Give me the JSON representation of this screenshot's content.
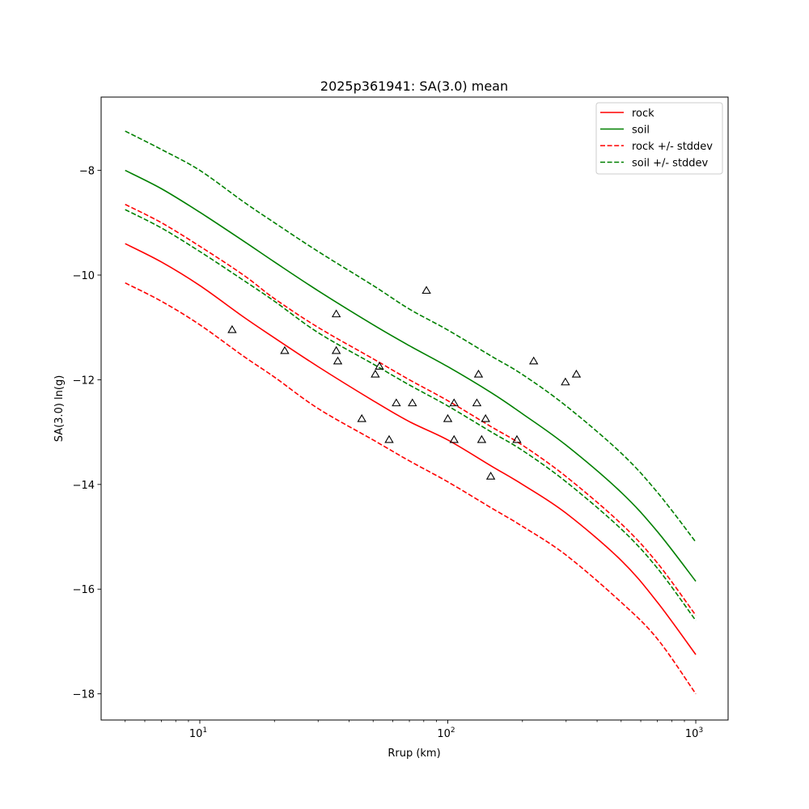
{
  "chart_data": {
    "type": "line",
    "title": "2025p361941: SA(3.0) mean",
    "xlabel": "Rrup (km)",
    "ylabel": "SA(3.0) ln(g)",
    "xscale": "log",
    "xlim": [
      4,
      1350
    ],
    "ylim": [
      -18.5,
      -6.6
    ],
    "xticks": [
      {
        "value": 10,
        "base": "10",
        "exp": "1"
      },
      {
        "value": 100,
        "base": "10",
        "exp": "2"
      },
      {
        "value": 1000,
        "base": "10",
        "exp": "3"
      }
    ],
    "yticks": [
      -8,
      -10,
      -12,
      -14,
      -16,
      -18
    ],
    "ytick_labels": [
      "−8",
      "−10",
      "−12",
      "−14",
      "−16",
      "−18"
    ],
    "legend_position": "top-right",
    "series": [
      {
        "name": "rock",
        "color": "#ff0000",
        "dash": "solid",
        "x": [
          5,
          7,
          10,
          15,
          20,
          30,
          50,
          70,
          100,
          150,
          200,
          300,
          500,
          700,
          1000
        ],
        "y": [
          -9.4,
          -9.75,
          -10.2,
          -10.8,
          -11.2,
          -11.75,
          -12.4,
          -12.8,
          -13.15,
          -13.65,
          -14.0,
          -14.55,
          -15.45,
          -16.25,
          -17.25
        ]
      },
      {
        "name": "soil",
        "color": "#008000",
        "dash": "solid",
        "x": [
          5,
          7,
          10,
          15,
          20,
          30,
          50,
          70,
          100,
          150,
          200,
          300,
          500,
          700,
          1000
        ],
        "y": [
          -8.0,
          -8.35,
          -8.8,
          -9.35,
          -9.75,
          -10.3,
          -10.95,
          -11.35,
          -11.75,
          -12.25,
          -12.65,
          -13.25,
          -14.15,
          -14.9,
          -15.85
        ]
      },
      {
        "name": "rock +/- stddev",
        "color": "#ff0000",
        "dash": "dashed",
        "x": [
          5,
          7,
          10,
          15,
          20,
          30,
          50,
          70,
          100,
          150,
          200,
          300,
          500,
          700,
          1000
        ],
        "y": [
          -8.65,
          -9.0,
          -9.45,
          -10.0,
          -10.45,
          -11.0,
          -11.6,
          -12.0,
          -12.4,
          -12.9,
          -13.25,
          -13.85,
          -14.75,
          -15.5,
          -16.5
        ]
      },
      {
        "name": "",
        "color": "#ff0000",
        "dash": "dashed",
        "x": [
          5,
          7,
          10,
          15,
          20,
          30,
          50,
          70,
          100,
          150,
          200,
          300,
          500,
          700,
          1000
        ],
        "y": [
          -10.15,
          -10.5,
          -10.95,
          -11.55,
          -11.95,
          -12.55,
          -13.15,
          -13.55,
          -13.95,
          -14.45,
          -14.8,
          -15.35,
          -16.25,
          -16.95,
          -18.0
        ]
      },
      {
        "name": "soil +/- stddev",
        "color": "#008000",
        "dash": "dashed",
        "x": [
          5,
          7,
          10,
          15,
          20,
          30,
          50,
          70,
          100,
          150,
          200,
          300,
          500,
          700,
          1000
        ],
        "y": [
          -7.25,
          -7.6,
          -8.0,
          -8.6,
          -9.0,
          -9.55,
          -10.2,
          -10.65,
          -11.05,
          -11.55,
          -11.9,
          -12.5,
          -13.4,
          -14.15,
          -15.1
        ]
      },
      {
        "name": "",
        "color": "#008000",
        "dash": "dashed",
        "x": [
          5,
          7,
          10,
          15,
          20,
          30,
          50,
          70,
          100,
          150,
          200,
          300,
          500,
          700,
          1000
        ],
        "y": [
          -8.75,
          -9.1,
          -9.55,
          -10.1,
          -10.5,
          -11.1,
          -11.7,
          -12.1,
          -12.5,
          -13.0,
          -13.35,
          -13.95,
          -14.85,
          -15.6,
          -16.6
        ]
      }
    ],
    "observations": {
      "marker": "triangle",
      "color": "#000000",
      "x": [
        13.5,
        22,
        35.5,
        36,
        35.5,
        45,
        51,
        53,
        58,
        62,
        72,
        82,
        100,
        106,
        106,
        131,
        133,
        137,
        142,
        149,
        190,
        222,
        298,
        330
      ],
      "y": [
        -11.05,
        -11.45,
        -10.75,
        -11.65,
        -11.45,
        -12.75,
        -11.9,
        -11.75,
        -13.15,
        -12.45,
        -12.45,
        -10.3,
        -12.75,
        -12.45,
        -13.15,
        -12.45,
        -11.9,
        -13.15,
        -12.75,
        -13.85,
        -13.15,
        -11.65,
        -12.05,
        -11.9
      ]
    }
  }
}
